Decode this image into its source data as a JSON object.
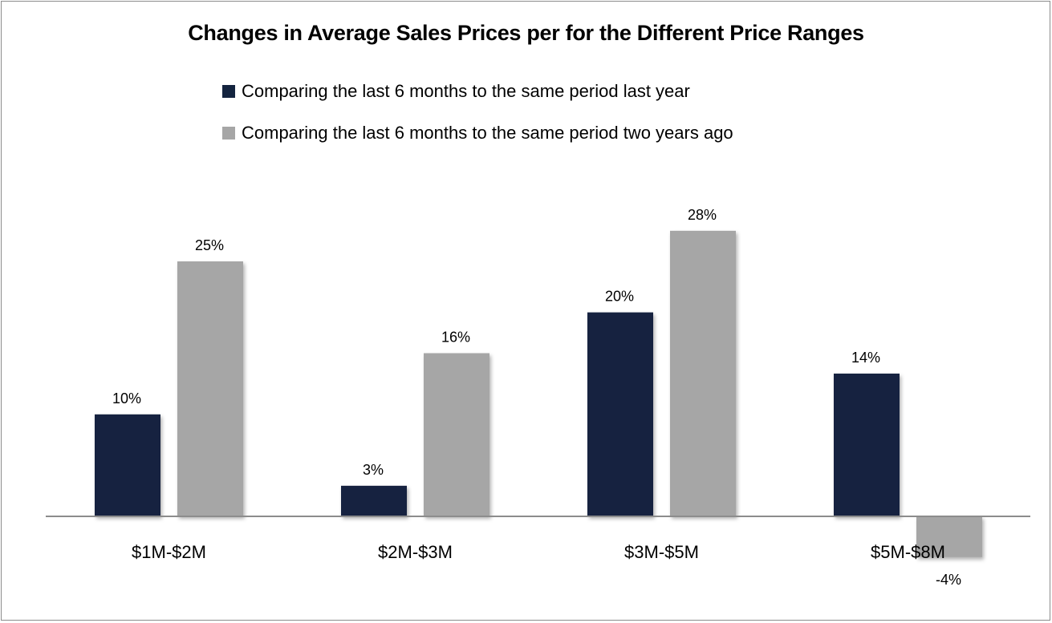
{
  "chart_data": {
    "type": "bar",
    "title": "Changes in Average Sales Prices per  for the Different Price Ranges",
    "xlabel": "",
    "ylabel": "",
    "categories": [
      "$1M-$2M",
      "$2M-$3M",
      "$3M-$5M",
      "$5M-$8M"
    ],
    "series": [
      {
        "name": "Comparing the last 6 months to the same period last year",
        "color": "#14243f",
        "values": [
          10,
          3,
          20,
          14
        ],
        "labels": [
          "10%",
          "3%",
          "20%",
          "14%"
        ]
      },
      {
        "name": "Comparing the last 6 months to the same period two years ago",
        "color": "#a6a6a6",
        "values": [
          25,
          16,
          28,
          -4
        ],
        "labels": [
          "25%",
          "16%",
          "28%",
          "-4%"
        ]
      }
    ],
    "ylim": [
      -10,
      30
    ],
    "grid": false,
    "legend_position": "top"
  }
}
